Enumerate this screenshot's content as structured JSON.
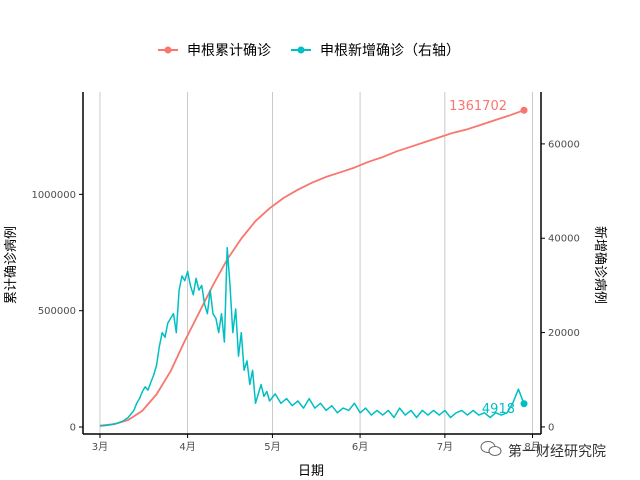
{
  "chart_data": {
    "type": "line",
    "xlabel": "日期",
    "ylabel_left": "累计确诊病例",
    "ylabel_right": "新增确诊病例",
    "x_tick_labels": [
      "3月",
      "4月",
      "5月",
      "6月",
      "7月",
      "8月"
    ],
    "y_left_ticks": [
      "0",
      "500000",
      "1000000"
    ],
    "y_right_ticks": [
      "0",
      "20000",
      "40000",
      "60000"
    ],
    "y_left_lim": [
      -30000,
      1440000
    ],
    "y_right_lim": [
      -1500,
      71000
    ],
    "x_range_days": [
      -6,
      156
    ],
    "x_tick_days": [
      0,
      31,
      61,
      92,
      122,
      153
    ],
    "grid": "vertical gridlines at month ticks",
    "legend_position": "top",
    "series": [
      {
        "name": "申根累计确诊",
        "axis": "left",
        "color": "#F8766D",
        "end_label": "1361702",
        "points": [
          [
            0,
            6000
          ],
          [
            5,
            12000
          ],
          [
            10,
            30000
          ],
          [
            15,
            70000
          ],
          [
            20,
            140000
          ],
          [
            25,
            240000
          ],
          [
            30,
            370000
          ],
          [
            35,
            490000
          ],
          [
            40,
            610000
          ],
          [
            45,
            720000
          ],
          [
            50,
            810000
          ],
          [
            55,
            885000
          ],
          [
            60,
            940000
          ],
          [
            65,
            985000
          ],
          [
            70,
            1020000
          ],
          [
            75,
            1050000
          ],
          [
            80,
            1075000
          ],
          [
            85,
            1095000
          ],
          [
            90,
            1115000
          ],
          [
            95,
            1140000
          ],
          [
            100,
            1160000
          ],
          [
            105,
            1185000
          ],
          [
            110,
            1205000
          ],
          [
            115,
            1225000
          ],
          [
            120,
            1245000
          ],
          [
            125,
            1265000
          ],
          [
            130,
            1280000
          ],
          [
            135,
            1300000
          ],
          [
            140,
            1320000
          ],
          [
            145,
            1340000
          ],
          [
            150,
            1361702
          ]
        ]
      },
      {
        "name": "申根新增确诊（右轴）",
        "axis": "right",
        "color": "#00BFC4",
        "end_label": "4918",
        "points": [
          [
            0,
            200
          ],
          [
            2,
            300
          ],
          [
            4,
            500
          ],
          [
            6,
            800
          ],
          [
            8,
            1200
          ],
          [
            10,
            2000
          ],
          [
            12,
            3500
          ],
          [
            13,
            5000
          ],
          [
            14,
            6000
          ],
          [
            15,
            7500
          ],
          [
            16,
            8500
          ],
          [
            17,
            7800
          ],
          [
            18,
            9500
          ],
          [
            19,
            11000
          ],
          [
            20,
            13000
          ],
          [
            21,
            17000
          ],
          [
            22,
            20000
          ],
          [
            23,
            19000
          ],
          [
            24,
            22000
          ],
          [
            25,
            23000
          ],
          [
            26,
            24000
          ],
          [
            27,
            20000
          ],
          [
            28,
            29000
          ],
          [
            29,
            32000
          ],
          [
            30,
            31000
          ],
          [
            31,
            33000
          ],
          [
            32,
            30000
          ],
          [
            33,
            28000
          ],
          [
            34,
            31500
          ],
          [
            35,
            29000
          ],
          [
            36,
            30000
          ],
          [
            37,
            26000
          ],
          [
            38,
            24000
          ],
          [
            39,
            29000
          ],
          [
            40,
            24000
          ],
          [
            41,
            23000
          ],
          [
            42,
            20000
          ],
          [
            43,
            24000
          ],
          [
            44,
            18000
          ],
          [
            45,
            38000
          ],
          [
            46,
            30000
          ],
          [
            47,
            20000
          ],
          [
            48,
            25000
          ],
          [
            49,
            15000
          ],
          [
            50,
            20000
          ],
          [
            51,
            12000
          ],
          [
            52,
            14000
          ],
          [
            53,
            9000
          ],
          [
            54,
            12000
          ],
          [
            55,
            5000
          ],
          [
            56,
            7000
          ],
          [
            57,
            9000
          ],
          [
            58,
            6500
          ],
          [
            59,
            7500
          ],
          [
            60,
            5500
          ],
          [
            62,
            7000
          ],
          [
            64,
            5000
          ],
          [
            66,
            6000
          ],
          [
            68,
            4500
          ],
          [
            70,
            5500
          ],
          [
            72,
            4000
          ],
          [
            74,
            6000
          ],
          [
            76,
            4000
          ],
          [
            78,
            5000
          ],
          [
            80,
            3500
          ],
          [
            82,
            4500
          ],
          [
            84,
            3000
          ],
          [
            86,
            4000
          ],
          [
            88,
            3500
          ],
          [
            90,
            5000
          ],
          [
            92,
            3000
          ],
          [
            94,
            4000
          ],
          [
            96,
            2500
          ],
          [
            98,
            3500
          ],
          [
            100,
            2500
          ],
          [
            102,
            3500
          ],
          [
            104,
            2000
          ],
          [
            106,
            4000
          ],
          [
            108,
            2500
          ],
          [
            110,
            3500
          ],
          [
            112,
            2000
          ],
          [
            114,
            3500
          ],
          [
            116,
            2500
          ],
          [
            118,
            3500
          ],
          [
            120,
            2500
          ],
          [
            122,
            3500
          ],
          [
            124,
            2000
          ],
          [
            126,
            3000
          ],
          [
            128,
            3500
          ],
          [
            130,
            2500
          ],
          [
            132,
            3500
          ],
          [
            134,
            2500
          ],
          [
            136,
            3000
          ],
          [
            138,
            2000
          ],
          [
            140,
            3000
          ],
          [
            142,
            2500
          ],
          [
            144,
            3000
          ],
          [
            146,
            5000
          ],
          [
            148,
            8000
          ],
          [
            150,
            4918
          ]
        ]
      }
    ]
  },
  "watermark": "第一财经研究院",
  "colors": {
    "axis": "#000000",
    "grid": "#b3b3b3",
    "tick_text": "#4d4d4d"
  }
}
